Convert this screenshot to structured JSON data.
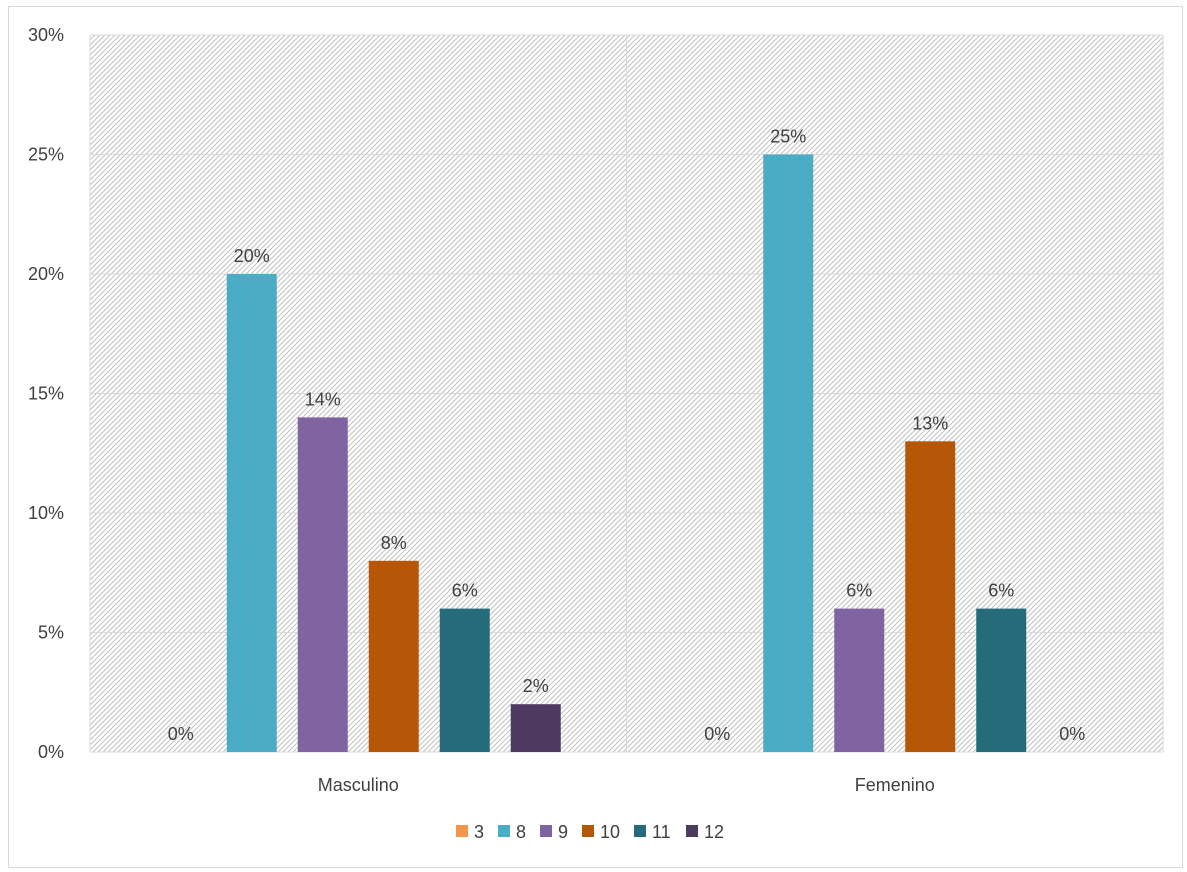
{
  "chart_data": {
    "type": "bar",
    "categories": [
      "Masculino",
      "Femenino"
    ],
    "series": [
      {
        "name": "3",
        "color": "#f4954a",
        "values": [
          0,
          0
        ]
      },
      {
        "name": "8",
        "color": "#4aacc5",
        "values": [
          20,
          25
        ]
      },
      {
        "name": "9",
        "color": "#8064a2",
        "values": [
          14,
          6
        ]
      },
      {
        "name": "10",
        "color": "#b65708",
        "values": [
          8,
          13
        ]
      },
      {
        "name": "11",
        "color": "#256b79",
        "values": [
          6,
          6
        ]
      },
      {
        "name": "12",
        "color": "#4c3a61",
        "values": [
          2,
          0
        ]
      }
    ],
    "data_labels": [
      [
        "0%",
        "20%",
        "14%",
        "8%",
        "6%",
        "2%"
      ],
      [
        "0%",
        "25%",
        "6%",
        "13%",
        "6%",
        "0%"
      ]
    ],
    "y_ticks": [
      "0%",
      "5%",
      "10%",
      "15%",
      "20%",
      "25%",
      "30%"
    ],
    "ylim": [
      0,
      30
    ],
    "grid": true,
    "legend_position": "bottom",
    "title": "",
    "xlabel": "",
    "ylabel": ""
  }
}
